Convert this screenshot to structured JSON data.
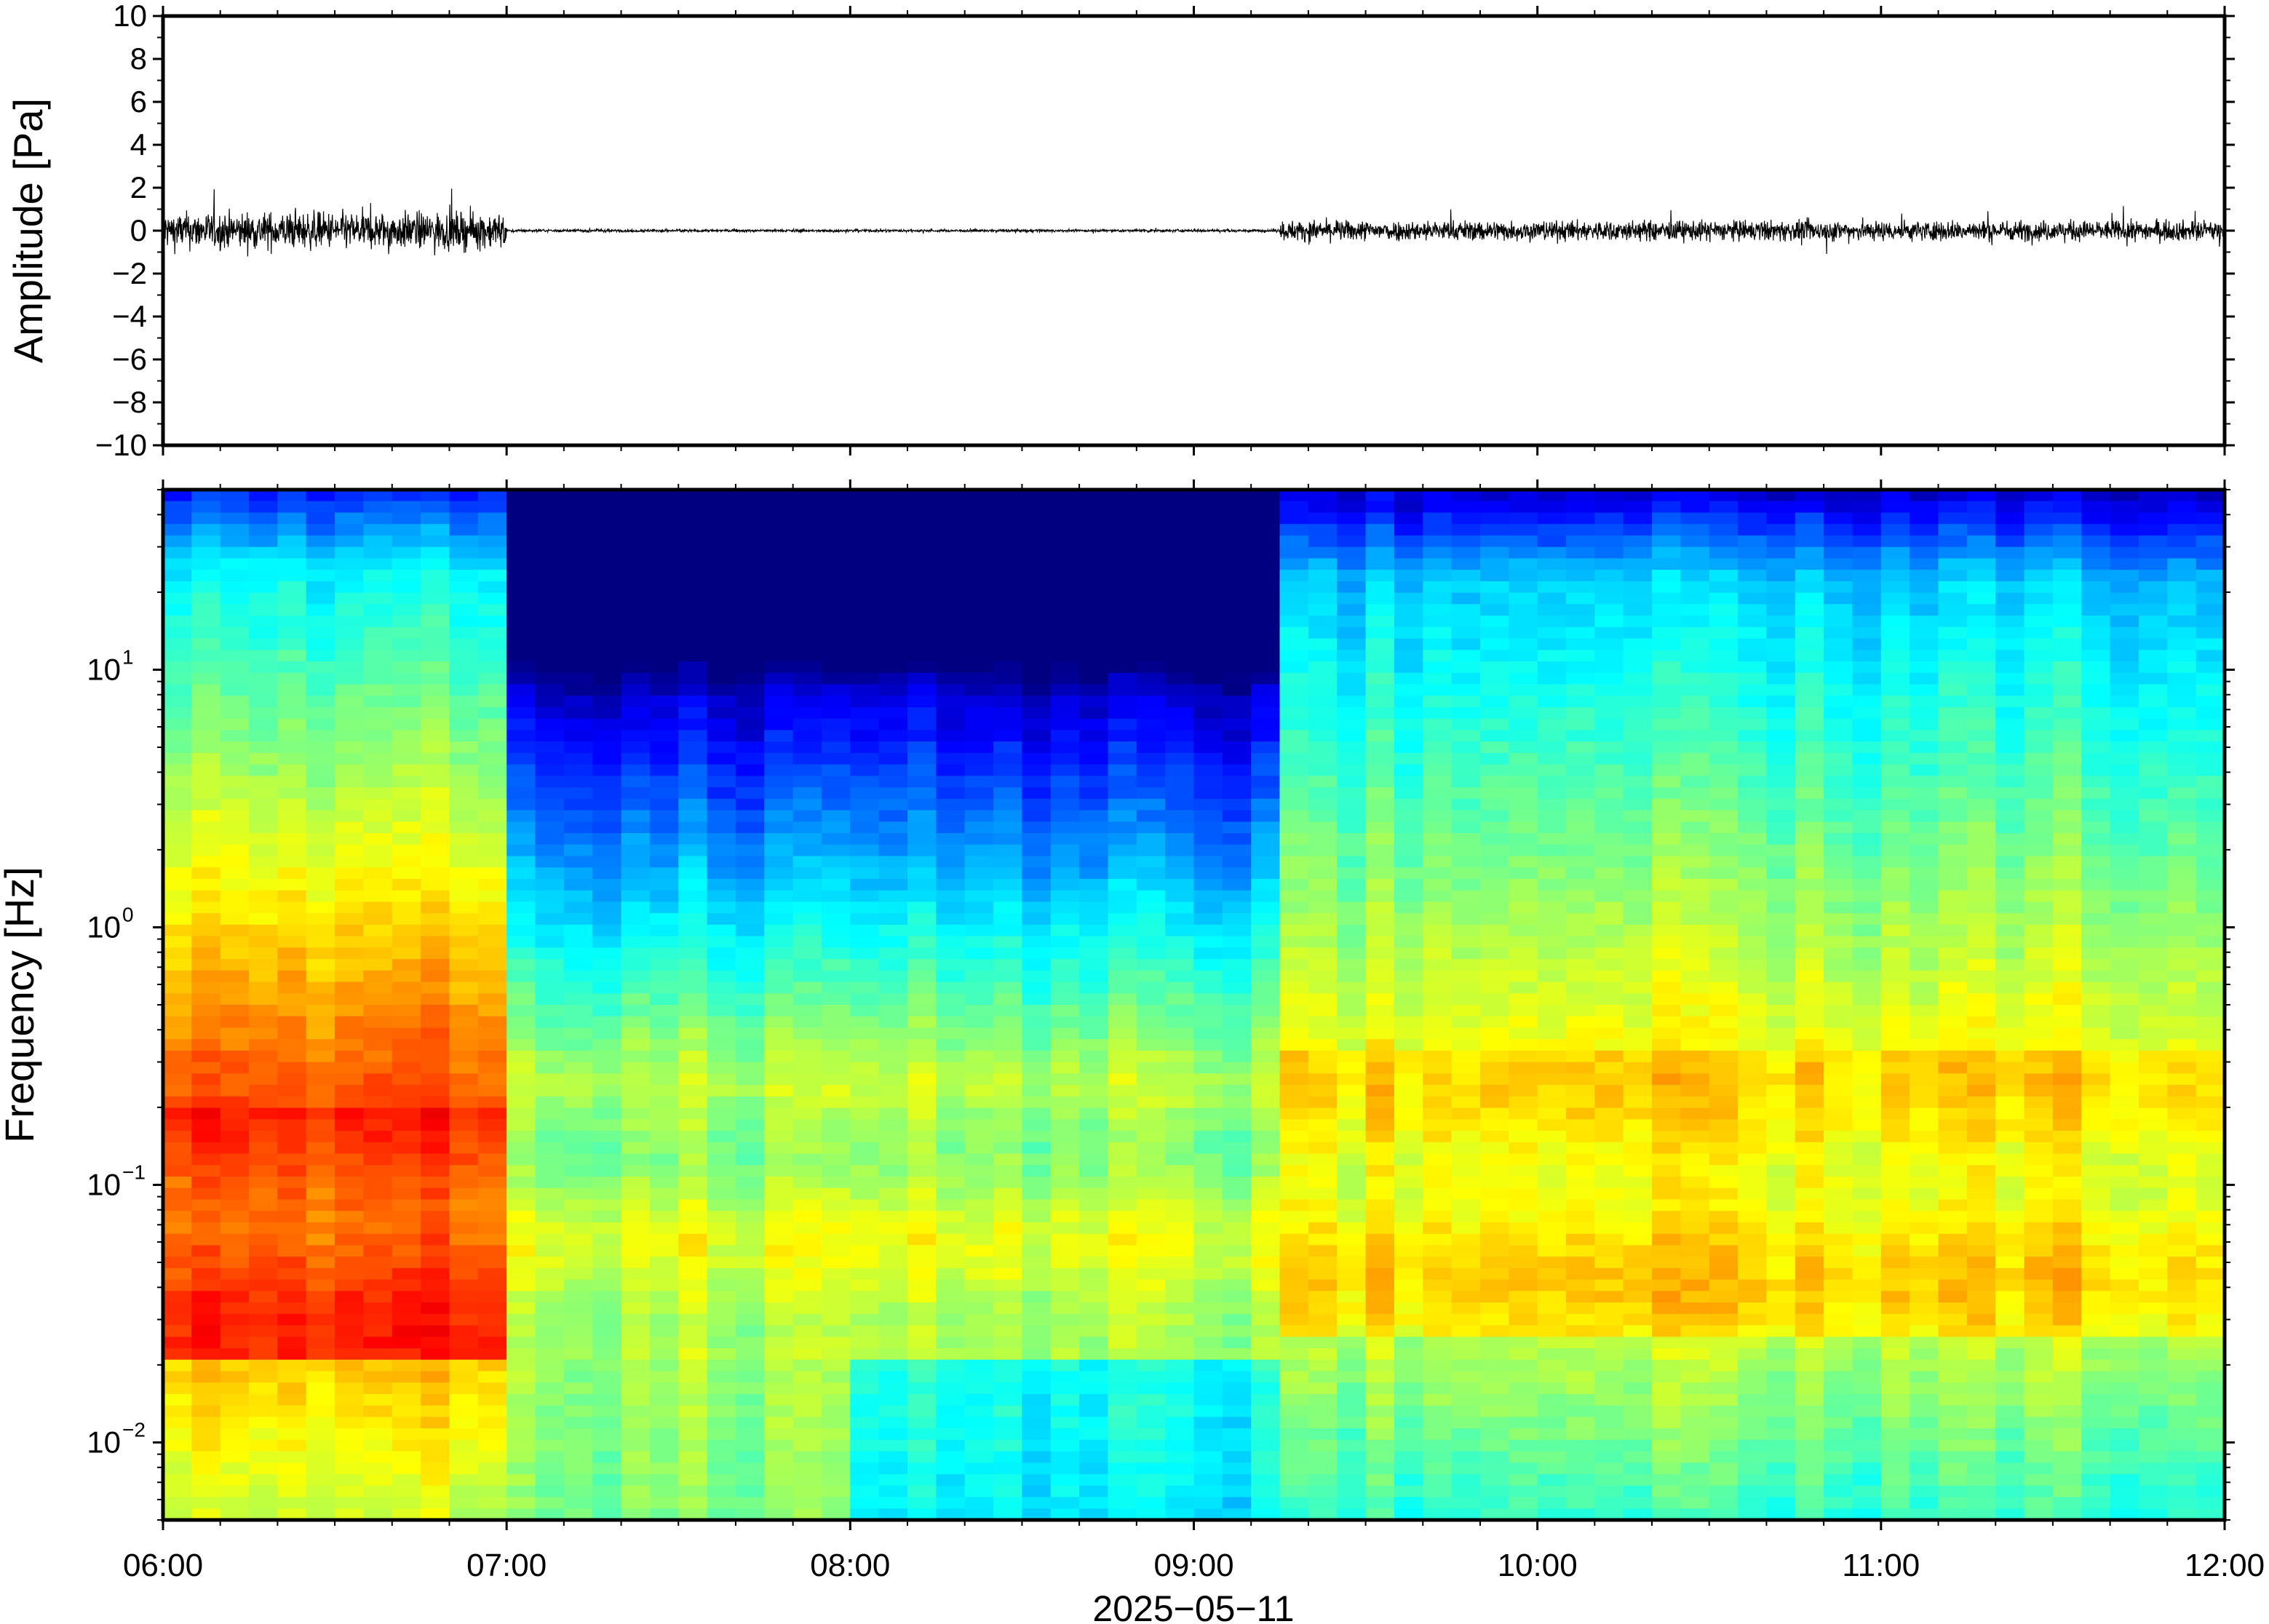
{
  "chart_data": [
    {
      "type": "line",
      "ylabel": "Amplitude [Pa]",
      "ylim": [
        -10,
        10
      ],
      "yticks": [
        "10",
        "8",
        "6",
        "4",
        "2",
        "0",
        "−2",
        "−4",
        "−6",
        "−8",
        "−10"
      ],
      "ytick_values": [
        10,
        8,
        6,
        4,
        2,
        0,
        -2,
        -4,
        -6,
        -8,
        -10
      ],
      "xlim": [
        "06:00",
        "12:00"
      ],
      "grid": false,
      "series": [
        {
          "description_segments": [
            {
              "from": "06:00",
              "to": "07:00",
              "envelope_pa": 1.0
            },
            {
              "from": "07:00",
              "to": "09:15",
              "envelope_pa": 0.1
            },
            {
              "from": "09:15",
              "to": "12:00",
              "envelope_pa": 0.55
            }
          ]
        }
      ]
    },
    {
      "type": "heatmap",
      "ylabel": "Frequency [Hz]",
      "yscale": "log",
      "ylim": [
        0.005,
        50
      ],
      "yticks": [
        {
          "label": "10",
          "exp": "1",
          "value": 10
        },
        {
          "label": "10",
          "exp": "0",
          "value": 1
        },
        {
          "label": "10",
          "exp": "−1",
          "value": 0.1
        },
        {
          "label": "10",
          "exp": "−2",
          "value": 0.01
        }
      ],
      "xlabel": "2025−05−11",
      "xticks": [
        "06:00",
        "07:00",
        "08:00",
        "09:00",
        "10:00",
        "11:00",
        "12:00"
      ],
      "xlim": [
        "06:00",
        "12:00"
      ],
      "colormap": "jet",
      "time_column_minutes": 5,
      "regimes": [
        {
          "from": "06:00",
          "to": "07:00",
          "level": "high"
        },
        {
          "from": "07:00",
          "to": "09:15",
          "level": "low"
        },
        {
          "from": "09:15",
          "to": "12:00",
          "level": "medium"
        }
      ],
      "grid": false
    }
  ],
  "labels": {
    "amp_ylabel": "Amplitude [Pa]",
    "freq_ylabel": "Frequency [Hz]",
    "date": "2025−05−11"
  }
}
